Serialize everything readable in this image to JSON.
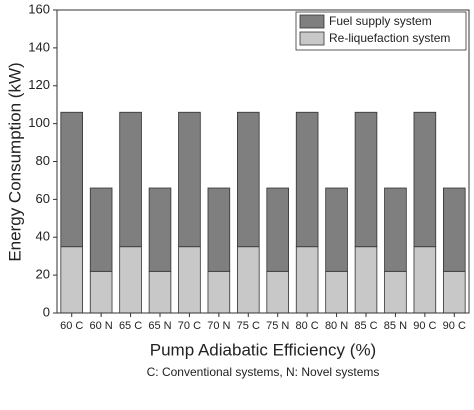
{
  "chart_data": {
    "type": "stacked-bar",
    "y_label": "Energy Consumption (kW)",
    "x_label": "Pump Adiabatic Efficiency (%)",
    "annotation": "C: Conventional systems, N: Novel systems",
    "categories": [
      "60 C",
      "60 N",
      "65 C",
      "65 N",
      "70 C",
      "70 N",
      "75 C",
      "75 N",
      "80 C",
      "80 N",
      "85 C",
      "85 N",
      "90 C",
      "90 C"
    ],
    "series": [
      {
        "name": "Re-liquefaction system",
        "color": "#c8c8c8",
        "values": [
          35,
          22,
          35,
          22,
          35,
          22,
          35,
          22,
          35,
          22,
          35,
          22,
          35,
          22
        ]
      },
      {
        "name": "Fuel supply system",
        "color": "#7f7f7f",
        "values": [
          71,
          44,
          71,
          44,
          71,
          44,
          71,
          44,
          71,
          44,
          71,
          44,
          71,
          44
        ]
      }
    ],
    "ylim": [
      0,
      160
    ],
    "yticks": [
      0,
      20,
      40,
      60,
      80,
      100,
      120,
      140,
      160
    ],
    "legend": "top-right"
  }
}
